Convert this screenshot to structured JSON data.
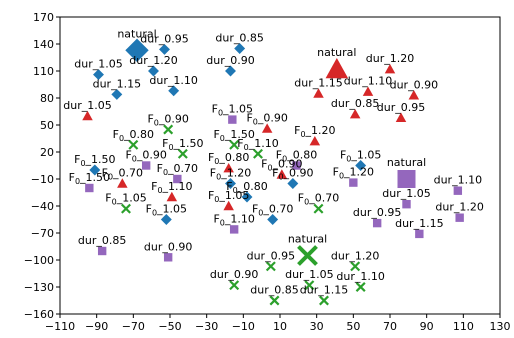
{
  "chart_data": {
    "type": "scatter",
    "title": "",
    "xlabel": "",
    "ylabel": "",
    "xlim": [
      -110,
      130
    ],
    "ylim": [
      -160,
      170
    ],
    "xticks": [
      -110,
      -90,
      -70,
      -50,
      -30,
      -10,
      10,
      30,
      50,
      70,
      90,
      110,
      130
    ],
    "yticks": [
      -160,
      -130,
      -100,
      -70,
      -40,
      -10,
      20,
      50,
      80,
      110,
      140,
      170
    ],
    "grid": false,
    "legend": "none",
    "series": [
      {
        "marker": "diamond",
        "color": "#1f77b4",
        "points": [
          {
            "x": -68,
            "y": 133,
            "label": "natural",
            "big": true
          },
          {
            "x": -53,
            "y": 134,
            "label": "dur_0.95"
          },
          {
            "x": -12,
            "y": 135,
            "label": "dur_0.85"
          },
          {
            "x": -89,
            "y": 106,
            "label": "dur_1.05"
          },
          {
            "x": -59,
            "y": 110,
            "label": "dur_1.20"
          },
          {
            "x": -17,
            "y": 110,
            "label": "dur_0.90"
          },
          {
            "x": -79,
            "y": 84,
            "label": "dur_1.15"
          },
          {
            "x": -48,
            "y": 88,
            "label": "dur_1.10"
          },
          {
            "x": -91,
            "y": 0,
            "label": "F0_1.50"
          },
          {
            "x": 54,
            "y": 5,
            "label": "F0_1.05"
          },
          {
            "x": -17,
            "y": -15,
            "label": "F0_1.20"
          },
          {
            "x": 17,
            "y": -15,
            "label": "F0_0.90"
          },
          {
            "x": -52,
            "y": -55,
            "label": "F0_1.05"
          },
          {
            "x": -8,
            "y": -30,
            "label": "F0_0.80"
          },
          {
            "x": 6,
            "y": -55,
            "label": "F0_0.70"
          }
        ]
      },
      {
        "marker": "triangle",
        "color": "#d62728",
        "points": [
          {
            "x": 41,
            "y": 112,
            "label": "natural",
            "big": true
          },
          {
            "x": 70,
            "y": 112,
            "label": "dur_1.20"
          },
          {
            "x": 31,
            "y": 85,
            "label": "dur_1.15"
          },
          {
            "x": 58,
            "y": 87,
            "label": "dur_1.10"
          },
          {
            "x": 83,
            "y": 83,
            "label": "dur_0.90"
          },
          {
            "x": 51,
            "y": 62,
            "label": "dur_0.85"
          },
          {
            "x": 76,
            "y": 58,
            "label": "dur_0.95"
          },
          {
            "x": -95,
            "y": 60,
            "label": "dur_1.05"
          },
          {
            "x": 3,
            "y": 46,
            "label": "F0_0.90"
          },
          {
            "x": 29,
            "y": 32,
            "label": "F0_1.20"
          },
          {
            "x": -18,
            "y": 2,
            "label": "F0_0.80"
          },
          {
            "x": 11,
            "y": -5,
            "label": "F0_0.90"
          },
          {
            "x": -76,
            "y": -15,
            "label": "F0_0.70"
          },
          {
            "x": -49,
            "y": -30,
            "label": "F0_1.10"
          },
          {
            "x": -18,
            "y": -40,
            "label": "F0_1.05"
          }
        ]
      },
      {
        "marker": "x",
        "color": "#2ca02c",
        "points": [
          {
            "x": 25,
            "y": -95,
            "label": "natural",
            "big": true
          },
          {
            "x": -70,
            "y": 28,
            "label": "F0_0.80"
          },
          {
            "x": -51,
            "y": 45,
            "label": "F0_0.90"
          },
          {
            "x": -15,
            "y": 28,
            "label": "F0_1.50"
          },
          {
            "x": -43,
            "y": 18,
            "label": "F0_1.50"
          },
          {
            "x": -2,
            "y": 18,
            "label": "F0_1.10"
          },
          {
            "x": -74,
            "y": -43,
            "label": "F0_1.05"
          },
          {
            "x": 31,
            "y": -43,
            "label": "F0_0.70"
          },
          {
            "x": 5,
            "y": -107,
            "label": "dur_0.95"
          },
          {
            "x": 51,
            "y": -107,
            "label": "dur_1.20"
          },
          {
            "x": -15,
            "y": -128,
            "label": "dur_0.90"
          },
          {
            "x": 26,
            "y": -128,
            "label": "dur_1.05"
          },
          {
            "x": 54,
            "y": -130,
            "label": "dur_1.10"
          },
          {
            "x": 7,
            "y": -145,
            "label": "dur_0.85"
          },
          {
            "x": 34,
            "y": -145,
            "label": "dur_1.15"
          }
        ]
      },
      {
        "marker": "square",
        "color": "#9467bd",
        "points": [
          {
            "x": 79,
            "y": -10,
            "label": "natural",
            "big": true
          },
          {
            "x": -63,
            "y": 5,
            "label": "F0_0.90"
          },
          {
            "x": -16,
            "y": 56,
            "label": "F0_1.05"
          },
          {
            "x": 19,
            "y": 5,
            "label": "F0_0.80"
          },
          {
            "x": -46,
            "y": -10,
            "label": "F0_0.70"
          },
          {
            "x": 50,
            "y": -14,
            "label": "F0_1.20"
          },
          {
            "x": -94,
            "y": -20,
            "label": "F0_1.50"
          },
          {
            "x": -15,
            "y": -66,
            "label": "F0_1.10"
          },
          {
            "x": 79,
            "y": -38,
            "label": "dur_1.05"
          },
          {
            "x": 107,
            "y": -23,
            "label": "dur_1.10"
          },
          {
            "x": 108,
            "y": -53,
            "label": "dur_1.20"
          },
          {
            "x": 63,
            "y": -59,
            "label": "dur_0.95"
          },
          {
            "x": 86,
            "y": -71,
            "label": "dur_1.15"
          },
          {
            "x": -87,
            "y": -90,
            "label": "dur_0.85"
          },
          {
            "x": -51,
            "y": -97,
            "label": "dur_0.90"
          }
        ]
      }
    ]
  }
}
